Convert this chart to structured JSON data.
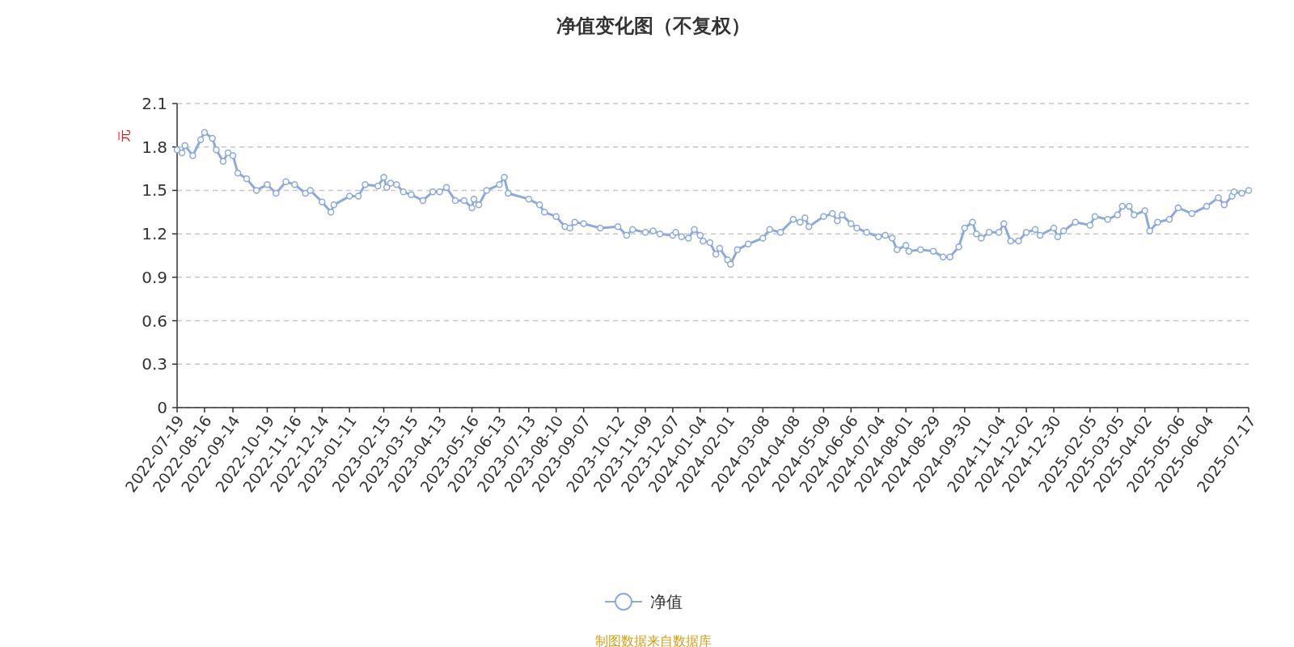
{
  "chart_data": {
    "type": "line",
    "title": "净值变化图（不复权）",
    "ylabel": "元",
    "annotations": [
      "制图数据来自数据库"
    ],
    "xlim": [
      "2022-07-19",
      "2025-07-17"
    ],
    "xticks": [
      "2022-07-19",
      "2022-08-16",
      "2022-09-14",
      "2022-10-19",
      "2022-11-16",
      "2022-12-14",
      "2023-01-11",
      "2023-02-15",
      "2023-03-15",
      "2023-04-13",
      "2023-05-16",
      "2023-06-13",
      "2023-07-13",
      "2023-08-10",
      "2023-09-07",
      "2023-10-12",
      "2023-11-09",
      "2023-12-07",
      "2024-01-04",
      "2024-02-01",
      "2024-03-08",
      "2024-04-08",
      "2024-05-09",
      "2024-06-06",
      "2024-07-04",
      "2024-08-01",
      "2024-08-29",
      "2024-09-30",
      "2024-11-04",
      "2024-12-02",
      "2024-12-30",
      "2025-02-05",
      "2025-03-05",
      "2025-04-02",
      "2025-05-06",
      "2025-06-04",
      "2025-07-17"
    ],
    "ylim": [
      0,
      2.1
    ],
    "yticks": [
      0,
      0.3,
      0.6,
      0.9,
      1.2,
      1.5,
      1.8,
      2.1
    ],
    "grid": "y",
    "legend": "bottom",
    "marker": "circle",
    "line_style": "solid",
    "series": [
      {
        "name": "净值",
        "color": "#8eaadc",
        "x": [
          "2022-07-19",
          "2022-07-24",
          "2022-07-27",
          "2022-08-04",
          "2022-08-12",
          "2022-08-16",
          "2022-08-24",
          "2022-08-28",
          "2022-09-04",
          "2022-09-09",
          "2022-09-14",
          "2022-09-19",
          "2022-09-28",
          "2022-10-08",
          "2022-10-19",
          "2022-10-28",
          "2022-11-07",
          "2022-11-16",
          "2022-11-27",
          "2022-12-02",
          "2022-12-14",
          "2022-12-23",
          "2022-12-26",
          "2023-01-11",
          "2023-01-20",
          "2023-01-27",
          "2023-02-09",
          "2023-02-15",
          "2023-02-18",
          "2023-02-22",
          "2023-02-28",
          "2023-03-07",
          "2023-03-15",
          "2023-03-27",
          "2023-04-06",
          "2023-04-13",
          "2023-04-20",
          "2023-04-29",
          "2023-05-08",
          "2023-05-16",
          "2023-05-18",
          "2023-05-23",
          "2023-05-31",
          "2023-06-13",
          "2023-06-18",
          "2023-06-22",
          "2023-07-13",
          "2023-07-24",
          "2023-07-29",
          "2023-08-10",
          "2023-08-19",
          "2023-08-24",
          "2023-08-29",
          "2023-09-07",
          "2023-09-24",
          "2023-10-12",
          "2023-10-21",
          "2023-10-27",
          "2023-11-09",
          "2023-11-17",
          "2023-11-24",
          "2023-12-07",
          "2023-12-10",
          "2023-12-16",
          "2023-12-23",
          "2023-12-29",
          "2024-01-04",
          "2024-01-07",
          "2024-01-14",
          "2024-01-20",
          "2024-01-24",
          "2024-02-01",
          "2024-02-04",
          "2024-02-11",
          "2024-02-22",
          "2024-03-08",
          "2024-03-15",
          "2024-03-26",
          "2024-04-08",
          "2024-04-15",
          "2024-04-20",
          "2024-04-24",
          "2024-05-09",
          "2024-05-18",
          "2024-05-23",
          "2024-05-28",
          "2024-06-06",
          "2024-06-12",
          "2024-06-22",
          "2024-07-04",
          "2024-07-11",
          "2024-07-18",
          "2024-07-23",
          "2024-08-01",
          "2024-08-04",
          "2024-08-16",
          "2024-08-29",
          "2024-09-08",
          "2024-09-15",
          "2024-09-24",
          "2024-09-30",
          "2024-10-08",
          "2024-10-12",
          "2024-10-17",
          "2024-10-25",
          "2024-11-04",
          "2024-11-09",
          "2024-11-16",
          "2024-11-24",
          "2024-12-02",
          "2024-12-11",
          "2024-12-16",
          "2024-12-30",
          "2025-01-03",
          "2025-01-09",
          "2025-01-21",
          "2025-02-05",
          "2025-02-10",
          "2025-02-23",
          "2025-03-05",
          "2025-03-10",
          "2025-03-17",
          "2025-03-22",
          "2025-04-02",
          "2025-04-07",
          "2025-04-15",
          "2025-04-27",
          "2025-05-06",
          "2025-05-20",
          "2025-06-04",
          "2025-06-16",
          "2025-06-22",
          "2025-06-30",
          "2025-07-02",
          "2025-07-10",
          "2025-07-17"
        ],
        "values": [
          1.78,
          1.76,
          1.81,
          1.74,
          1.85,
          1.9,
          1.86,
          1.78,
          1.7,
          1.76,
          1.74,
          1.62,
          1.58,
          1.5,
          1.54,
          1.48,
          1.56,
          1.54,
          1.48,
          1.5,
          1.42,
          1.35,
          1.4,
          1.46,
          1.46,
          1.54,
          1.53,
          1.59,
          1.52,
          1.55,
          1.54,
          1.49,
          1.47,
          1.43,
          1.49,
          1.49,
          1.52,
          1.43,
          1.43,
          1.38,
          1.44,
          1.4,
          1.5,
          1.54,
          1.59,
          1.48,
          1.44,
          1.4,
          1.35,
          1.32,
          1.25,
          1.24,
          1.28,
          1.27,
          1.24,
          1.25,
          1.19,
          1.23,
          1.21,
          1.22,
          1.2,
          1.19,
          1.21,
          1.18,
          1.17,
          1.23,
          1.19,
          1.15,
          1.14,
          1.06,
          1.1,
          1.02,
          0.99,
          1.09,
          1.13,
          1.17,
          1.23,
          1.21,
          1.3,
          1.28,
          1.31,
          1.25,
          1.32,
          1.34,
          1.29,
          1.33,
          1.27,
          1.24,
          1.21,
          1.18,
          1.19,
          1.17,
          1.09,
          1.12,
          1.08,
          1.09,
          1.08,
          1.04,
          1.04,
          1.11,
          1.24,
          1.28,
          1.2,
          1.17,
          1.21,
          1.21,
          1.27,
          1.15,
          1.15,
          1.21,
          1.23,
          1.19,
          1.24,
          1.18,
          1.22,
          1.28,
          1.26,
          1.32,
          1.3,
          1.33,
          1.39,
          1.39,
          1.33,
          1.36,
          1.22,
          1.28,
          1.3,
          1.38,
          1.34,
          1.39,
          1.45,
          1.4,
          1.46,
          1.49,
          1.48,
          1.5
        ]
      }
    ]
  }
}
